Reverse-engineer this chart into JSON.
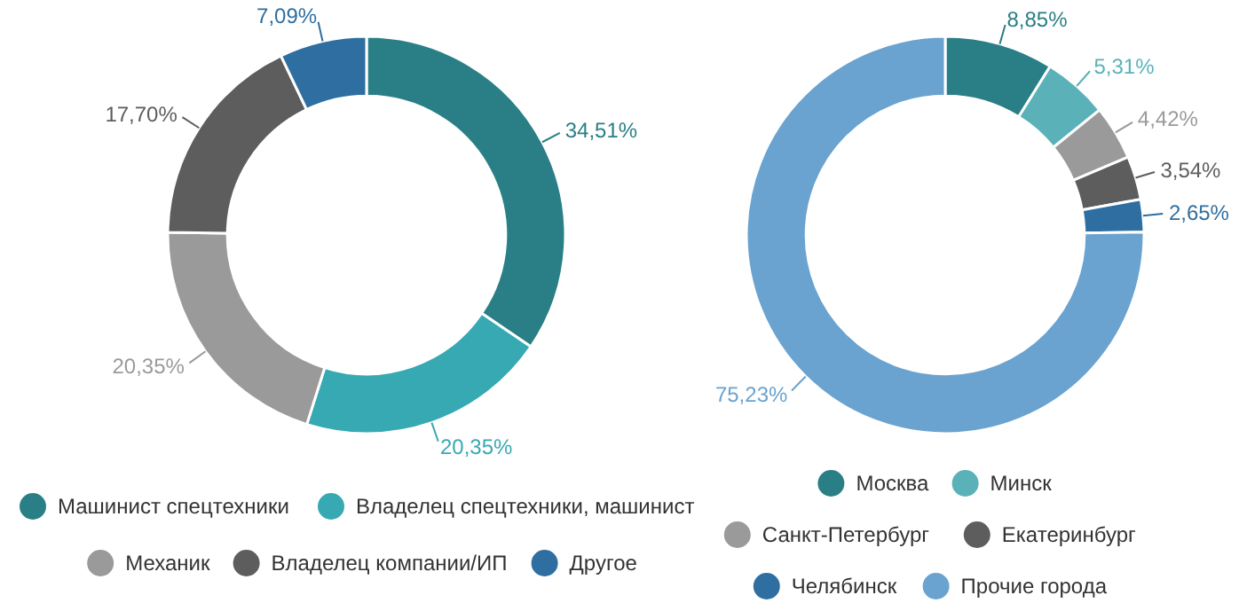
{
  "chart_data": [
    {
      "type": "donut",
      "categories": [
        "Машинист спецтехники",
        "Владелец спецтехники, машинист",
        "Механик",
        "Владелец компании/ИП",
        "Другое"
      ],
      "values": [
        34.51,
        20.35,
        20.35,
        17.7,
        7.09
      ],
      "colors": [
        "#2a7f86",
        "#36a9b2",
        "#9a9a9a",
        "#5d5d5d",
        "#2e6ea0"
      ],
      "value_labels": [
        "34,51%",
        "20,35%",
        "20,35%",
        "17,70%",
        "7,09%"
      ],
      "legend": "bottom"
    },
    {
      "type": "donut",
      "categories": [
        "Москва",
        "Минск",
        "Санкт-Петербург",
        "Екатеринбург",
        "Челябинск",
        "Прочие города"
      ],
      "values": [
        8.85,
        5.31,
        4.42,
        3.54,
        2.65,
        75.23
      ],
      "colors": [
        "#2a7f86",
        "#5ab2b8",
        "#9a9a9a",
        "#5d5d5d",
        "#2e6ea0",
        "#6aa3cf"
      ],
      "value_labels": [
        "8,85%",
        "5,31%",
        "4,42%",
        "3,54%",
        "2,65%",
        "75,23%"
      ],
      "legend": "bottom"
    }
  ]
}
